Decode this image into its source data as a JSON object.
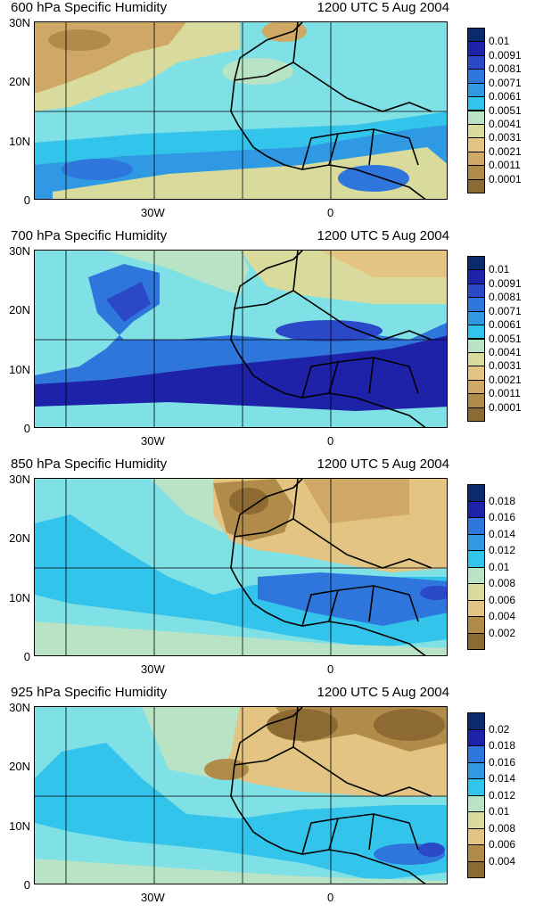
{
  "panels": [
    {
      "title": "600 hPa Specific Humidity",
      "time": "1200 UTC 5 Aug 2004",
      "colorbar_labels": [
        "0.01",
        "0.0091",
        "0.0081",
        "0.0071",
        "0.0061",
        "0.0051",
        "0.0041",
        "0.0031",
        "0.0021",
        "0.0011",
        "0.0001"
      ]
    },
    {
      "title": "700 hPa Specific Humidity",
      "time": "1200 UTC 5 Aug 2004",
      "colorbar_labels": [
        "0.01",
        "0.0091",
        "0.0081",
        "0.0071",
        "0.0061",
        "0.0051",
        "0.0041",
        "0.0031",
        "0.0021",
        "0.0011",
        "0.0001"
      ]
    },
    {
      "title": "850 hPa Specific Humidity",
      "time": "1200 UTC 5 Aug 2004",
      "colorbar_labels": [
        "0.018",
        "0.016",
        "0.014",
        "0.012",
        "0.01",
        "0.008",
        "0.006",
        "0.004",
        "0.002"
      ]
    },
    {
      "title": "925 hPa Specific Humidity",
      "time": "1200 UTC 5 Aug 2004",
      "colorbar_labels": [
        "0.02",
        "0.018",
        "0.016",
        "0.014",
        "0.012",
        "0.01",
        "0.008",
        "0.006",
        "0.004"
      ]
    }
  ],
  "axes": {
    "lat_labels": [
      "30N",
      "20N",
      "10N",
      "0"
    ],
    "lon_labels": [
      "30W",
      "0"
    ]
  },
  "palette": [
    "#8d6a33",
    "#b08b4a",
    "#cfa865",
    "#e3c483",
    "#d8db9c",
    "#b9e3c5",
    "#7fe0e6",
    "#33c4ec",
    "#2f9ae3",
    "#2f76dc",
    "#2a48c8",
    "#1d22a8",
    "#0b2a6e"
  ]
}
